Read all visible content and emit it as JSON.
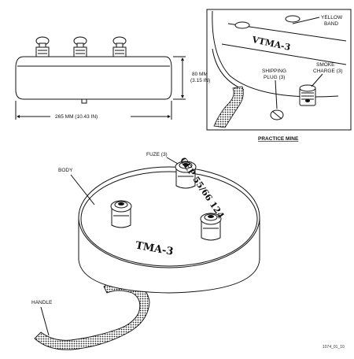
{
  "side_view": {
    "height_label_mm": "80 MM",
    "height_label_in": "(3.15 IN)",
    "width_label": "265 MM (10.43 IN)"
  },
  "practice_mine": {
    "marking": "VTMA-3",
    "yellow_band": [
      "YELLOW",
      "BAND"
    ],
    "smoke_charge": [
      "SMOKE",
      "CHARGE (3)"
    ],
    "shipping_plug": [
      "SHIPPING",
      "PLUG (3)"
    ],
    "caption": "PRACTICE MINE"
  },
  "main_view": {
    "fuze_label": "FUZE (3)",
    "body_label": "BODY",
    "handle_label": "HANDLE",
    "marking": "TMA-3",
    "side_marking": "CEP 55/66 124",
    "figure_id": "1074_01_10"
  }
}
